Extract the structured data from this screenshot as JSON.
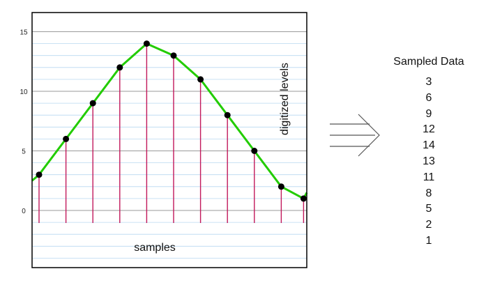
{
  "chart_data": {
    "type": "line",
    "xlabel": "samples",
    "ylabel": "digitized levels",
    "ylim": [
      0,
      15
    ],
    "y_ticks": [
      "15",
      "10",
      "5",
      "0"
    ],
    "y_tick_values": [
      15,
      10,
      5,
      0
    ],
    "samples": [
      3,
      6,
      9,
      12,
      14,
      13,
      11,
      8,
      5,
      2,
      1
    ],
    "curve_start_value": 2.5,
    "curve_end_value": 1.5,
    "grid": true,
    "colors": {
      "curve": "#22cc00",
      "stems": "#c2185b",
      "points": "#000000",
      "grid_major": "#9a9a9a",
      "grid_minor": "#b8d8f0",
      "frame": "#000000"
    }
  },
  "sampled_data": {
    "title": "Sampled Data",
    "values": [
      "3",
      "6",
      "9",
      "12",
      "14",
      "13",
      "11",
      "8",
      "5",
      "2",
      "1"
    ]
  },
  "arrow": {
    "color": "#555555"
  }
}
